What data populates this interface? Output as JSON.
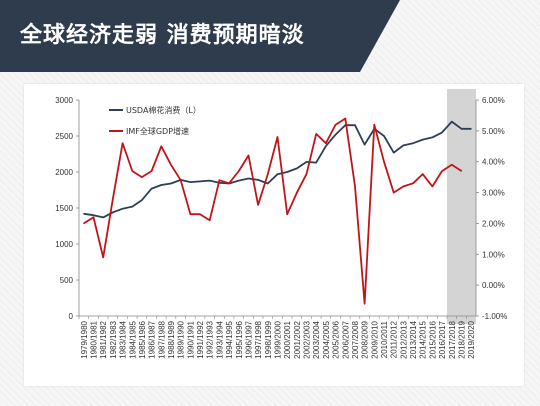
{
  "title": "全球经济走弱  消费预期暗淡",
  "colors": {
    "banner": "#2f3c4d",
    "usda_line": "#2e3f55",
    "imf_line": "#c0141b",
    "forecast_band": "#d4d4d4",
    "axis": "#888888"
  },
  "chart_data": {
    "type": "line",
    "categories": [
      "1979/1980",
      "1980/1981",
      "1981/1982",
      "1982/1983",
      "1983/1984",
      "1984/1985",
      "1985/1986",
      "1986/1987",
      "1987/1988",
      "1988/1989",
      "1989/1990",
      "1990/1991",
      "1991/1992",
      "1992/1993",
      "1993/1994",
      "1994/1995",
      "1995/1996",
      "1996/1997",
      "1997/1998",
      "1998/1999",
      "1999/2000",
      "2000/2001",
      "2001/2002",
      "2002/2003",
      "2003/2004",
      "2004/2005",
      "2005/2006",
      "2006/2007",
      "2007/2008",
      "2008/2009",
      "2009/2010",
      "2010/2011",
      "2011/2012",
      "2012/2013",
      "2013/2014",
      "2014/2015",
      "2015/2016",
      "2016/2017",
      "2017/2018",
      "2018/2019",
      "2019/2020"
    ],
    "series": [
      {
        "name": "USDA棉花消费（L）",
        "axis": "left",
        "values": [
          1420,
          1400,
          1370,
          1440,
          1490,
          1520,
          1610,
          1770,
          1820,
          1840,
          1890,
          1860,
          1870,
          1880,
          1850,
          1840,
          1880,
          1910,
          1890,
          1840,
          1970,
          2000,
          2050,
          2140,
          2130,
          2360,
          2520,
          2650,
          2650,
          2380,
          2600,
          2500,
          2270,
          2370,
          2400,
          2450,
          2480,
          2550,
          2700,
          2600,
          2600
        ]
      },
      {
        "name": "IMF全球GDP增速",
        "axis": "right",
        "values": [
          2.0,
          2.2,
          0.9,
          2.8,
          4.6,
          3.7,
          3.5,
          3.7,
          4.5,
          3.9,
          3.4,
          2.3,
          2.3,
          2.1,
          3.4,
          3.3,
          3.7,
          4.2,
          2.6,
          3.6,
          4.8,
          2.3,
          3.0,
          3.6,
          4.9,
          4.6,
          5.2,
          5.4,
          3.2,
          -0.6,
          5.2,
          4.0,
          3.0,
          3.2,
          3.3,
          3.6,
          3.2,
          3.7,
          3.9,
          3.7,
          null
        ]
      }
    ],
    "y_left": {
      "min": 0,
      "max": 3000,
      "step": 500,
      "ticks": [
        "0",
        "500",
        "1000",
        "1500",
        "2000",
        "2500",
        "3000"
      ]
    },
    "y_right": {
      "min": -1,
      "max": 6,
      "step": 1,
      "ticks": [
        "-1.00%",
        "0.00%",
        "1.00%",
        "2.00%",
        "3.00%",
        "4.00%",
        "5.00%",
        "6.00%"
      ]
    },
    "forecast_band": {
      "from": "2017/2018",
      "to": "2019/2020"
    },
    "legend_position": "top-left"
  }
}
